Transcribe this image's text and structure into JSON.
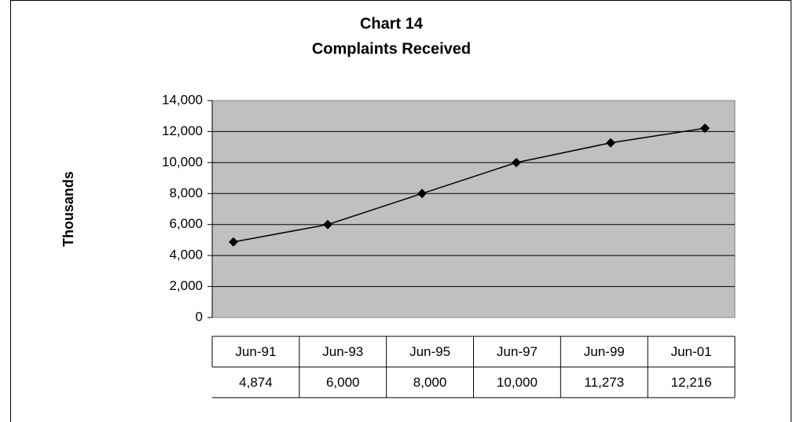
{
  "chart_data": {
    "type": "line",
    "title": [
      "Chart 14",
      "Complaints Received"
    ],
    "y_label": "Thousands",
    "categories": [
      "Jun-91",
      "Jun-93",
      "Jun-95",
      "Jun-97",
      "Jun-99",
      "Jun-01"
    ],
    "series": [
      {
        "color": "#000000",
        "values": [
          4874,
          6000,
          8000,
          10000,
          11273,
          12216
        ],
        "value_labels": [
          "4,874",
          "6,000",
          "8,000",
          "10,000",
          "11,273",
          "12,216"
        ]
      }
    ],
    "ylim": [
      0,
      14000
    ],
    "yticks": [
      0,
      {
        "value": 2000,
        "label": "2,000"
      },
      {
        "value": 4000,
        "label": "4,000"
      },
      {
        "value": 6000,
        "label": "6,000"
      },
      {
        "value": 8000,
        "label": "8,000"
      },
      {
        "value": 10000,
        "label": "10,000"
      },
      {
        "value": 12000,
        "label": "12,000"
      },
      {
        "value": 14000,
        "label": "14,000"
      }
    ],
    "grid": true,
    "plot_color": "#c0c0c0"
  }
}
